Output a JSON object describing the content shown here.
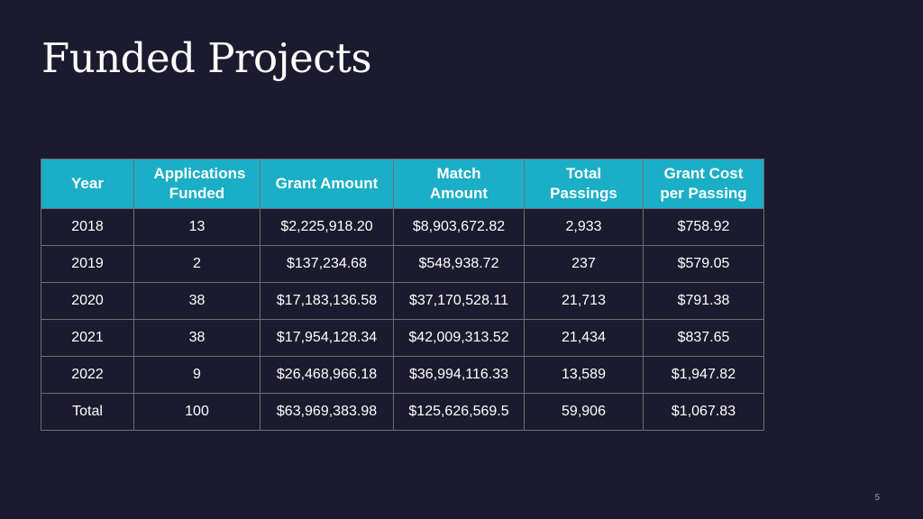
{
  "slide": {
    "title": "Funded Projects",
    "page_number": "5"
  },
  "table": {
    "headers": [
      "Year",
      "Applications Funded",
      "Grant Amount",
      "Match Amount",
      "Total Passings",
      "Grant Cost per Passing"
    ],
    "rows": [
      [
        "2018",
        "13",
        "$2,225,918.20",
        "$8,903,672.82",
        "2,933",
        "$758.92"
      ],
      [
        "2019",
        "2",
        "$137,234.68",
        "$548,938.72",
        "237",
        "$579.05"
      ],
      [
        "2020",
        "38",
        "$17,183,136.58",
        "$37,170,528.11",
        "21,713",
        "$791.38"
      ],
      [
        "2021",
        "38",
        "$17,954,128.34",
        "$42,009,313.52",
        "21,434",
        "$837.65"
      ],
      [
        "2022",
        "9",
        "$26,468,966.18",
        "$36,994,116.33",
        "13,589",
        "$1,947.82"
      ],
      [
        "Total",
        "100",
        "$63,969,383.98",
        "$125,626,569.5",
        "59,906",
        "$1,067.83"
      ]
    ]
  },
  "colors": {
    "background": "#1c1a2e",
    "header_fill": "#1aafc6",
    "text": "#ffffff",
    "grid_line": "#6d6d78"
  }
}
